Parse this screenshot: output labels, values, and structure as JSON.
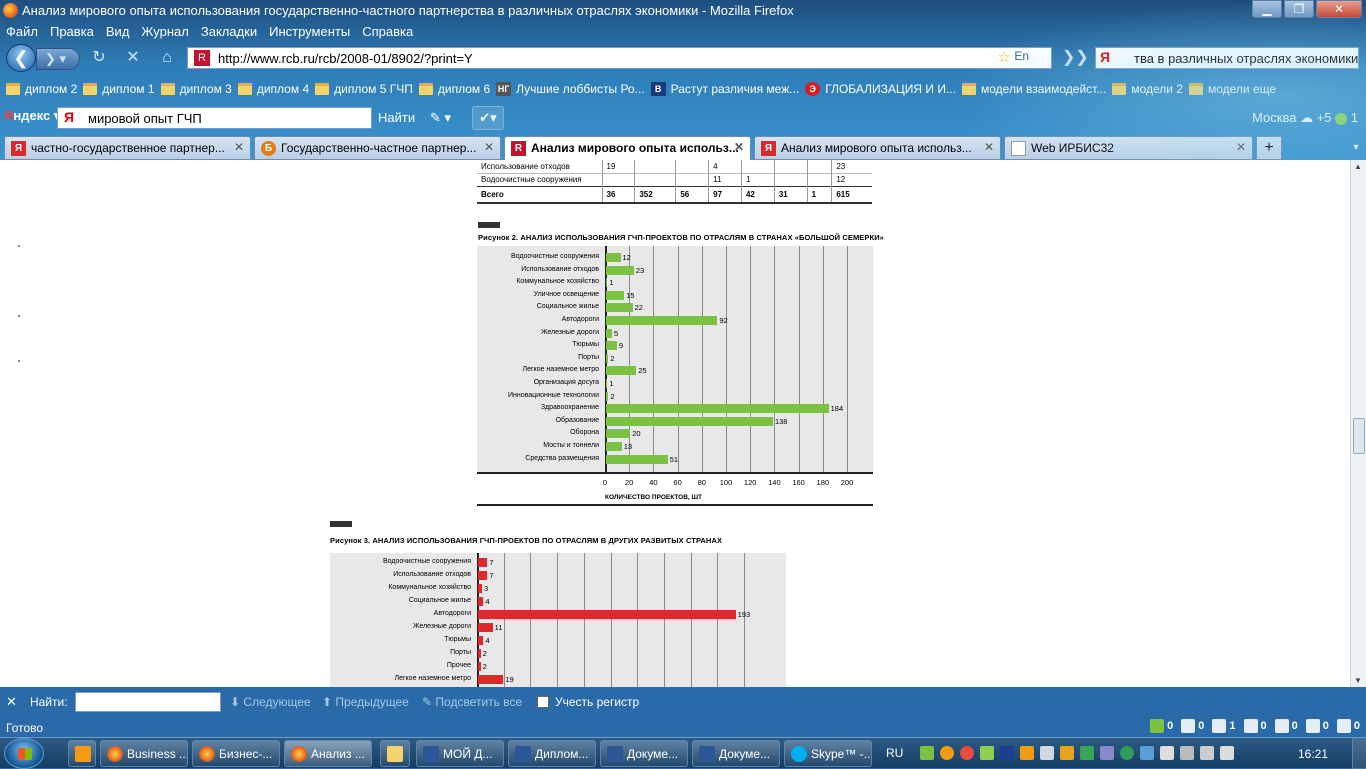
{
  "window": {
    "title": "Анализ мирового опыта использования государственно-частного партнерства в различных отраслях экономики - Mozilla Firefox",
    "controls": {
      "minimize": "▁",
      "maximize": "❐",
      "close": "✕"
    }
  },
  "menu": [
    "Файл",
    "Правка",
    "Вид",
    "Журнал",
    "Закладки",
    "Инструменты",
    "Справка"
  ],
  "nav": {
    "url": "http://www.rcb.ru/rcb/2008-01/8902/?print=Y",
    "lang_indicator": "En",
    "search_value": "тва в различных отраслях экономики",
    "search_engine_glyph": "Я"
  },
  "bookmarks": [
    {
      "label": "диплом 2",
      "icon": "folder-icon"
    },
    {
      "label": "диплом 1",
      "icon": "folder-icon"
    },
    {
      "label": "диплом 3",
      "icon": "folder-icon"
    },
    {
      "label": "диплом 4",
      "icon": "folder-icon"
    },
    {
      "label": "диплом 5 ГЧП",
      "icon": "folder-icon"
    },
    {
      "label": "диплом 6",
      "icon": "folder-icon"
    },
    {
      "label": "Лучшие лоббисты Ро...",
      "icon": "ng-logo-icon",
      "glyph": "НГ"
    },
    {
      "label": "Растут различия меж...",
      "icon": "vedomosti-logo-icon",
      "glyph": "В"
    },
    {
      "label": "ГЛОБАЛИЗАЦИЯ И И...",
      "icon": "red-circle-logo-icon",
      "glyph": "Э"
    },
    {
      "label": "модели взаимодейст...",
      "icon": "folder-icon"
    },
    {
      "label": "модели 2",
      "icon": "folder-icon"
    },
    {
      "label": "модели еще",
      "icon": "folder-icon"
    }
  ],
  "yandex_bar": {
    "logo_prefix": "Я",
    "logo_rest": "ндекс",
    "query": "мировой опыт ГЧП",
    "find_label": "Найти",
    "city": "Москва",
    "temperature": "+5",
    "count": "1"
  },
  "tabs": [
    {
      "label": "частно-государственное партнер...",
      "glyph": "Я",
      "color": "#d9282e"
    },
    {
      "label": "Государственно-частное партнер...",
      "glyph": "Б",
      "color": "#e77b16"
    },
    {
      "label": "Анализ мирового опыта использ...",
      "glyph": "R",
      "color": "#c8102e",
      "active": true
    },
    {
      "label": "Анализ мирового опыта использ...",
      "glyph": "Я",
      "color": "#d9282e"
    },
    {
      "label": "Web ИРБИС32",
      "glyph": "",
      "color": "#ffffff"
    }
  ],
  "page": {
    "table_rows": [
      {
        "label": "Использование отходов",
        "cells": [
          "19",
          "",
          "",
          "4",
          "",
          "",
          "",
          "23"
        ]
      },
      {
        "label": "Водоочистные сооружения",
        "cells": [
          "",
          "",
          "",
          "11",
          "1",
          "",
          "",
          "12"
        ]
      },
      {
        "label": "Всего",
        "cells": [
          "36",
          "352",
          "56",
          "97",
          "42",
          "31",
          "1",
          "615"
        ],
        "bold": true
      }
    ],
    "figure2_caption": "Рисунок 2. АНАЛИЗ ИСПОЛЬЗОВАНИЯ ГЧП-ПРОЕКТОВ ПО ОТРАСЛЯМ В СТРАНАХ «БОЛЬШОЙ СЕМЕРКИ»",
    "figure3_caption": "Рисунок 3. АНАЛИЗ ИСПОЛЬЗОВАНИЯ ГЧП-ПРОЕКТОВ ПО ОТРАСЛЯМ В ДРУГИХ РАЗВИТЫХ СТРАНАХ"
  },
  "chart_data": [
    {
      "type": "bar",
      "orientation": "horizontal",
      "title": "Рисунок 2. АНАЛИЗ ИСПОЛЬЗОВАНИЯ ГЧП-ПРОЕКТОВ ПО ОТРАСЛЯМ В СТРАНАХ «БОЛЬШОЙ СЕМЕРКИ»",
      "xlabel": "КОЛИЧЕСТВО ПРОЕКТОВ, ШТ",
      "color": "#7cc242",
      "xlim": [
        0,
        200
      ],
      "xticks": [
        0,
        20,
        40,
        60,
        80,
        100,
        120,
        140,
        160,
        180,
        200
      ],
      "grid": true,
      "categories": [
        "Водоочистные сооружения",
        "Использование отходов",
        "Коммунальное хозяйство",
        "Уличное освещение",
        "Социальное жилье",
        "Автодороги",
        "Железные дороги",
        "Тюрьмы",
        "Порты",
        "Легкое наземное метро",
        "Организация досуга",
        "Инновационные технологии",
        "Здравоохранение",
        "Образование",
        "Оборона",
        "Мосты и тоннели",
        "Средства размещения"
      ],
      "values": [
        12,
        23,
        1,
        15,
        22,
        92,
        5,
        9,
        2,
        25,
        1,
        2,
        184,
        138,
        20,
        13,
        51
      ]
    },
    {
      "type": "bar",
      "orientation": "horizontal",
      "title": "Рисунок 3. АНАЛИЗ ИСПОЛЬЗОВАНИЯ ГЧП-ПРОЕКТОВ ПО ОТРАСЛЯМ В ДРУГИХ РАЗВИТЫХ СТРАНАХ",
      "color": "#e3262b",
      "xlim": [
        0,
        200
      ],
      "grid": true,
      "categories": [
        "Водоочистные сооружения",
        "Использование отходов",
        "Коммунальное хозяйство",
        "Социальное жилье",
        "Автодороги",
        "Железные дороги",
        "Тюрьмы",
        "Порты",
        "Прочее",
        "Легкое наземное метро"
      ],
      "values": [
        7,
        7,
        3,
        4,
        193,
        11,
        4,
        2,
        2,
        19
      ]
    }
  ],
  "findbar": {
    "close_glyph": "✕",
    "label": "Найти:",
    "value": "",
    "next_label": "Следующее",
    "prev_label": "Предыдущее",
    "highlight_label": "Подсветить все",
    "match_case_label": "Учесть регистр"
  },
  "statusbar": {
    "status": "Готово",
    "counters": [
      "0",
      "0",
      "1",
      "0",
      "0",
      "0",
      "0"
    ]
  },
  "taskbar": {
    "items": [
      {
        "label": "Business ...",
        "icon": "firefox-icon"
      },
      {
        "label": "Бизнес-...",
        "icon": "firefox-icon"
      },
      {
        "label": "Анализ ...",
        "icon": "firefox-icon"
      },
      {
        "label": "",
        "icon": "explorer-icon"
      },
      {
        "label": "МОЙ Д...",
        "icon": "word-icon"
      },
      {
        "label": "Диплом...",
        "icon": "word-icon"
      },
      {
        "label": "Докуме...",
        "icon": "word-icon"
      },
      {
        "label": "Докуме...",
        "icon": "word-icon"
      },
      {
        "label": "Skype™ -...",
        "icon": "skype-icon"
      }
    ],
    "language": "RU",
    "clock": "16:21"
  }
}
